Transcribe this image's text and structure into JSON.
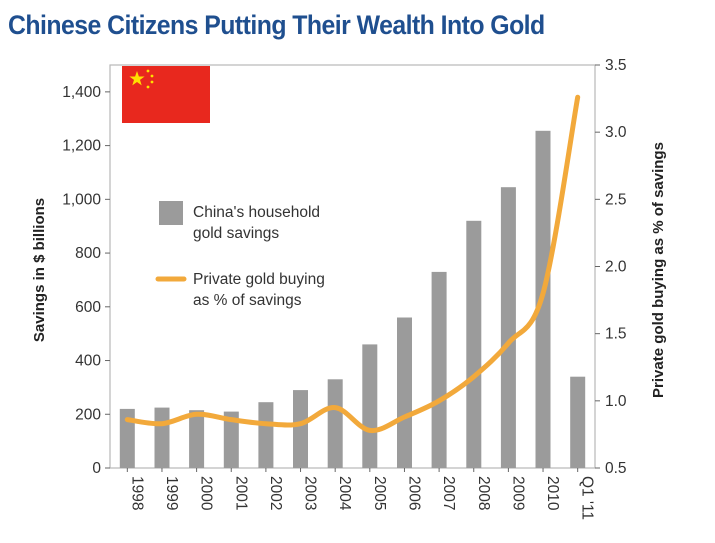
{
  "chart_data": {
    "type": "bar+line",
    "title": "Chinese Citizens Putting Their Wealth Into Gold",
    "categories": [
      "1998",
      "1999",
      "2000",
      "2001",
      "2002",
      "2003",
      "2004",
      "2005",
      "2006",
      "2007",
      "2008",
      "2009",
      "2010",
      "Q1 '11"
    ],
    "series": [
      {
        "name": "China's household gold savings",
        "type": "bar",
        "axis": "left",
        "color": "#9b9b9b",
        "values": [
          220,
          225,
          215,
          210,
          245,
          290,
          330,
          460,
          560,
          730,
          920,
          1045,
          1255,
          340
        ]
      },
      {
        "name": "Private gold buying as % of savings",
        "type": "line",
        "axis": "right",
        "color": "#f2a93b",
        "values": [
          0.86,
          0.83,
          0.9,
          0.86,
          0.83,
          0.83,
          0.95,
          0.78,
          0.88,
          1.0,
          1.18,
          1.43,
          1.8,
          3.26
        ]
      }
    ],
    "legend": [
      "China's household",
      "gold savings",
      "Private gold buying",
      "as % of savings"
    ],
    "ylabel": "Savings in $ billions",
    "ylim": [
      0,
      1500
    ],
    "yticks": [
      0,
      200,
      400,
      600,
      800,
      1000,
      1200,
      1400
    ],
    "ytick_labels": [
      "0",
      "200",
      "400",
      "600",
      "800",
      "1,000",
      "1,200",
      "1,400"
    ],
    "y2label": "Private gold buying as % of savings",
    "y2lim": [
      0.5,
      3.5
    ],
    "y2ticks": [
      0.5,
      1.0,
      1.5,
      2.0,
      2.5,
      3.0,
      3.5
    ],
    "y2tick_labels": [
      "0.5",
      "1.0",
      "1.5",
      "2.0",
      "2.5",
      "3.0",
      "3.5"
    ],
    "flag_icon": "china-flag-icon",
    "flag_colors": {
      "field": "#e8281e",
      "stars": "#ffe000"
    }
  }
}
